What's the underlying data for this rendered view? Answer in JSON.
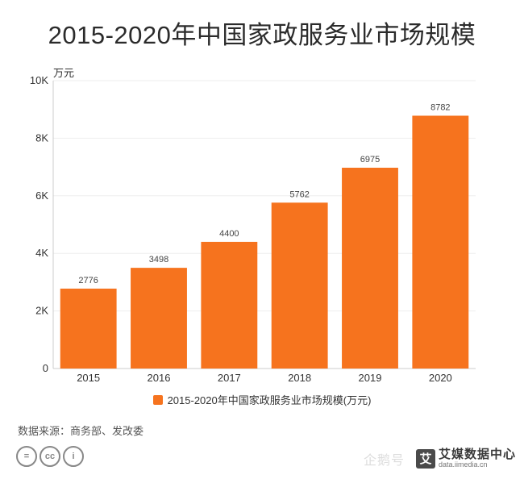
{
  "chart_data": {
    "type": "bar",
    "title": "2015-2020年中国家政服务业市场规模",
    "unit_label": "万元",
    "categories": [
      "2015",
      "2016",
      "2017",
      "2018",
      "2019",
      "2020"
    ],
    "series": [
      {
        "name": "2015-2020年中国家政服务业市场规模(万元)",
        "values": [
          2776,
          3498,
          4400,
          5762,
          6975,
          8782
        ],
        "color": "#f6731e"
      }
    ],
    "ylim": [
      0,
      10000
    ],
    "yticks": [
      0,
      2000,
      4000,
      6000,
      8000,
      10000
    ],
    "ytick_labels": [
      "0",
      "2K",
      "4K",
      "6K",
      "8K",
      "10K"
    ],
    "grid": true,
    "legend_position": "bottom"
  },
  "source_text": "数据来源：商务部、发改委",
  "license_icons": [
    "equals-icon",
    "cc-icon",
    "person-icon"
  ],
  "license_glyphs": [
    "=",
    "cc",
    "i"
  ],
  "watermark": {
    "platform": "企鹅号",
    "logo_char": "艾",
    "brand": "艾媒数据中心",
    "url": "data.iimedia.cn"
  }
}
